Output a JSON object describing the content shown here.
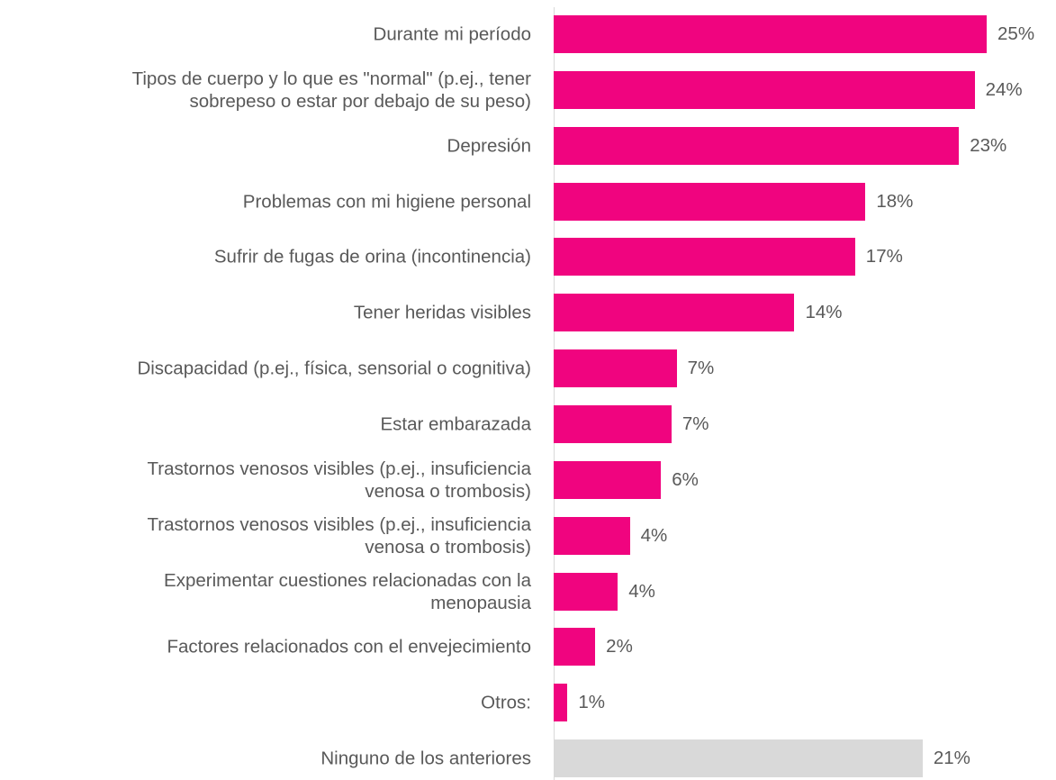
{
  "chart_data": {
    "type": "bar",
    "orientation": "horizontal",
    "categories": [
      "Durante mi período",
      "Tipos de cuerpo y lo que es \"normal\" (p.ej., tener\nsobrepeso o estar por debajo de su peso)",
      "Depresión",
      "Problemas con mi higiene personal",
      "Sufrir de fugas de orina (incontinencia)",
      "Tener heridas visibles",
      "Discapacidad (p.ej., física, sensorial o cognitiva)",
      "Estar embarazada",
      "Trastornos venosos visibles (p.ej., insuficiencia\nvenosa o trombosis)",
      "Trastornos venosos visibles (p.ej., insuficiencia\nvenosa o trombosis)",
      "Experimentar cuestiones relacionadas con la\nmenopausia",
      "Factores relacionados con el envejecimiento",
      "Otros:",
      "Ninguno de los anteriores"
    ],
    "values": [
      25.0,
      24.3,
      23.4,
      18.0,
      17.4,
      13.9,
      7.1,
      6.8,
      6.2,
      4.4,
      3.7,
      2.4,
      0.8,
      21.3
    ],
    "value_labels": [
      "25%",
      "24%",
      "23%",
      "18%",
      "17%",
      "14%",
      "7%",
      "7%",
      "6%",
      "4%",
      "4%",
      "2%",
      "1%",
      "21%"
    ],
    "colors": [
      "#f0047f",
      "#f0047f",
      "#f0047f",
      "#f0047f",
      "#f0047f",
      "#f0047f",
      "#f0047f",
      "#f0047f",
      "#f0047f",
      "#f0047f",
      "#f0047f",
      "#f0047f",
      "#f0047f",
      "#d9d9d9"
    ],
    "xlim": [
      0,
      29
    ]
  }
}
